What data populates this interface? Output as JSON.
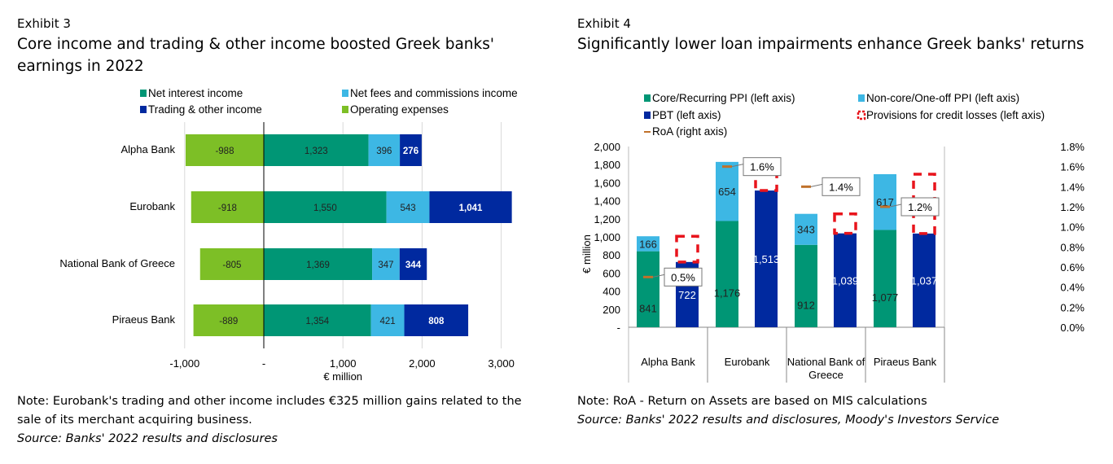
{
  "left": {
    "exhibit": "Exhibit 3",
    "title": "Core income and trading & other income boosted Greek banks' earnings in 2022",
    "note": "Note: Eurobank's trading and other income includes €325 million gains related to the sale of its merchant acquiring business.",
    "source": "Source: Banks' 2022 results and disclosures"
  },
  "right": {
    "exhibit": "Exhibit 4",
    "title": "Significantly lower loan impairments enhance Greek banks' returns",
    "note": "Note: RoA - Return on Assets are based on MIS calculations",
    "source": "Source: Banks' 2022 results and disclosures, Moody's Investors Service"
  },
  "chart_data": [
    {
      "type": "bar",
      "orientation": "horizontal",
      "stacked": true,
      "categories": [
        "Alpha Bank",
        "Eurobank",
        "National Bank of Greece",
        "Piraeus Bank"
      ],
      "series": [
        {
          "name": "Operating expenses",
          "values": [
            -988,
            -918,
            -805,
            -889
          ],
          "labels": [
            "-988",
            "-918",
            "-805",
            "-889"
          ],
          "color": "#7dbf26"
        },
        {
          "name": "Net interest income",
          "values": [
            1323,
            1550,
            1369,
            1354
          ],
          "labels": [
            "1,323",
            "1,550",
            "1,369",
            "1,354"
          ],
          "color": "#009675"
        },
        {
          "name": "Net fees and commissions income",
          "values": [
            396,
            543,
            347,
            421
          ],
          "labels": [
            "396",
            "543",
            "347",
            "421"
          ],
          "color": "#3db7e4"
        },
        {
          "name": "Trading & other income",
          "values": [
            276,
            1041,
            344,
            808
          ],
          "labels": [
            "276",
            "1,041",
            "344",
            "808"
          ],
          "color": "#00299f"
        }
      ],
      "legend_order": [
        "Net interest income",
        "Net fees and commissions income",
        "Trading & other income",
        "Operating expenses"
      ],
      "xlabel": "€ million",
      "xlim": [
        -1000,
        3000
      ],
      "xticks": [
        {
          "v": -1000,
          "label": "-1,000"
        },
        {
          "v": 0,
          "label": "-"
        },
        {
          "v": 1000,
          "label": "1,000"
        },
        {
          "v": 2000,
          "label": "2,000"
        },
        {
          "v": 3000,
          "label": "3,000"
        }
      ],
      "grid": true,
      "legend": "top"
    },
    {
      "type": "bar",
      "stacked": true,
      "categories": [
        "Alpha Bank",
        "Eurobank",
        "National Bank of Greece",
        "Piraeus Bank"
      ],
      "series": [
        {
          "name": "Core/Recurring PPI (left axis)",
          "values": [
            841,
            1176,
            912,
            1077
          ],
          "labels": [
            "841",
            "1,176",
            "912",
            "1,077"
          ],
          "color": "#009675"
        },
        {
          "name": "Non-core/One-off PPI  (left axis)",
          "values": [
            166,
            654,
            343,
            617
          ],
          "labels": [
            "166",
            "654",
            "343",
            "617"
          ],
          "color": "#3db7e4"
        },
        {
          "name": "PBT (left axis)",
          "values": [
            722,
            1513,
            1039,
            1037
          ],
          "labels": [
            "722",
            "1,513",
            "1,039",
            "1,037"
          ],
          "color": "#00299f"
        },
        {
          "name": "Provisions for credit losses (left axis)",
          "values": [
            285,
            317,
            216,
            657
          ],
          "color": "#e8141c"
        },
        {
          "name": "RoA (right axis)",
          "values": [
            0.5,
            1.6,
            1.4,
            1.2
          ],
          "labels": [
            "0.5%",
            "1.6%",
            "1.4%",
            "1.2%"
          ],
          "color": "#c0712a"
        }
      ],
      "ylabel": "€ million",
      "ylim": [
        0,
        2000
      ],
      "yticks": [
        "-",
        "200",
        "400",
        "600",
        "800",
        "1,000",
        "1,200",
        "1,400",
        "1,600",
        "1,800",
        "2,000"
      ],
      "y2lim": [
        0,
        1.8
      ],
      "y2ticks": [
        "0.0%",
        "0.2%",
        "0.4%",
        "0.6%",
        "0.8%",
        "1.0%",
        "1.2%",
        "1.4%",
        "1.6%",
        "1.8%"
      ],
      "grid": false,
      "legend": "top"
    }
  ]
}
